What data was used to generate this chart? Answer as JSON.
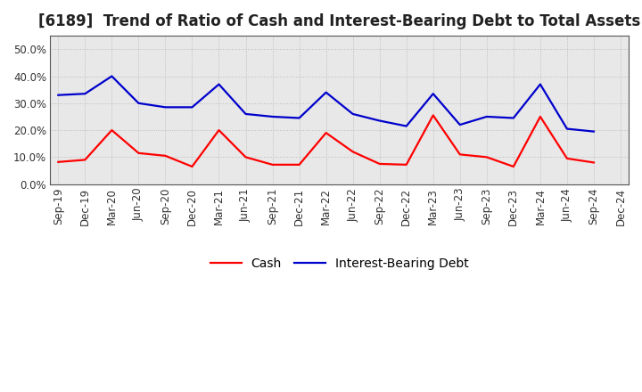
{
  "title": "[6189]  Trend of Ratio of Cash and Interest-Bearing Debt to Total Assets",
  "x_labels": [
    "Sep-19",
    "Dec-19",
    "Mar-20",
    "Jun-20",
    "Sep-20",
    "Dec-20",
    "Mar-21",
    "Jun-21",
    "Sep-21",
    "Dec-21",
    "Mar-22",
    "Jun-22",
    "Sep-22",
    "Dec-22",
    "Mar-23",
    "Jun-23",
    "Sep-23",
    "Dec-23",
    "Mar-24",
    "Jun-24",
    "Sep-24",
    "Dec-24"
  ],
  "cash": [
    0.082,
    0.09,
    0.2,
    0.115,
    0.105,
    0.065,
    0.2,
    0.1,
    0.072,
    0.072,
    0.19,
    0.12,
    0.075,
    0.072,
    0.255,
    0.11,
    0.1,
    0.065,
    0.25,
    0.095,
    0.08,
    null
  ],
  "interest_bearing_debt": [
    0.33,
    0.335,
    0.4,
    0.3,
    0.285,
    0.285,
    0.37,
    0.26,
    0.25,
    0.245,
    0.34,
    0.26,
    0.235,
    0.215,
    0.335,
    0.22,
    0.25,
    0.245,
    0.37,
    0.205,
    0.195,
    null
  ],
  "cash_color": "#ff0000",
  "debt_color": "#0000cc",
  "figure_background": "#ffffff",
  "plot_background": "#e8e8e8",
  "grid_color": "#bbbbbb",
  "ylim": [
    0.0,
    0.55
  ],
  "yticks": [
    0.0,
    0.1,
    0.2,
    0.3,
    0.4,
    0.5
  ],
  "ytick_labels": [
    "0.0%",
    "10.0%",
    "20.0%",
    "30.0%",
    "40.0%",
    "50.0%"
  ],
  "legend_cash": "Cash",
  "legend_debt": "Interest-Bearing Debt",
  "title_fontsize": 12,
  "tick_fontsize": 8.5,
  "legend_fontsize": 10,
  "line_width": 1.6
}
